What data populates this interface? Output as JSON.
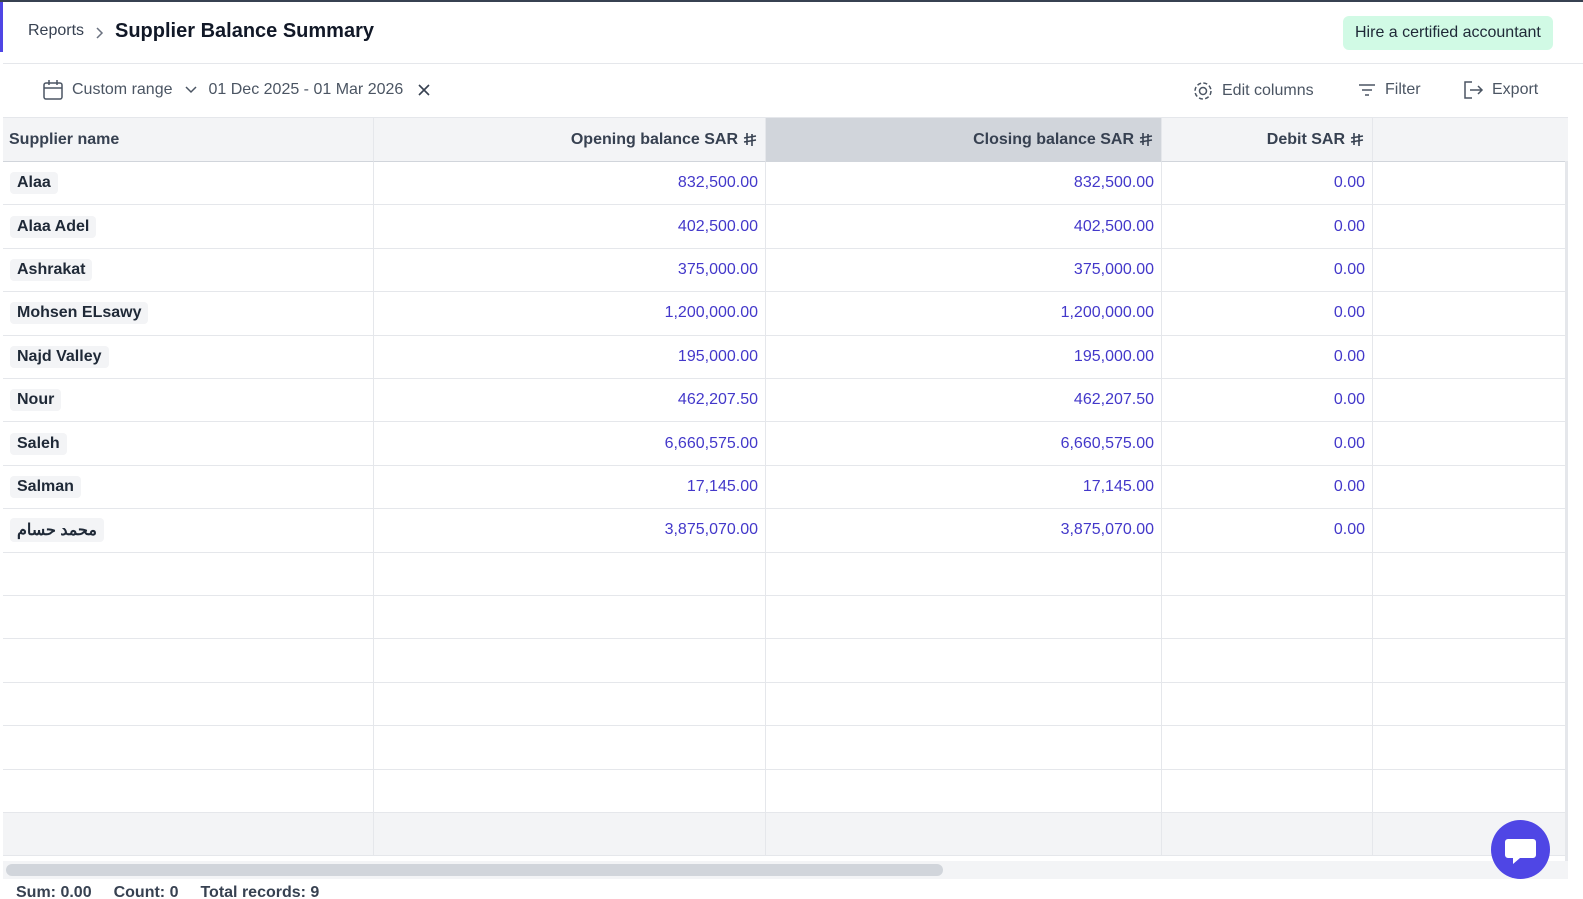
{
  "breadcrumb": {
    "parent": "Reports",
    "title": "Supplier Balance Summary"
  },
  "hire_button": "Hire a certified accountant",
  "toolbar": {
    "range": "Custom range",
    "dates": "01 Dec 2025 - 01 Mar 2026",
    "edit_columns": "Edit columns",
    "filter": "Filter",
    "export": "Export"
  },
  "table": {
    "columns": [
      "Supplier name",
      "Opening balance SAR",
      "Closing balance SAR",
      "Debit SAR"
    ],
    "rows": [
      [
        "Alaa",
        "832,500.00",
        "832,500.00",
        "0.00"
      ],
      [
        "Alaa Adel",
        "402,500.00",
        "402,500.00",
        "0.00"
      ],
      [
        "Ashrakat",
        "375,000.00",
        "375,000.00",
        "0.00"
      ],
      [
        "Mohsen ELsawy",
        "1,200,000.00",
        "1,200,000.00",
        "0.00"
      ],
      [
        "Najd Valley",
        "195,000.00",
        "195,000.00",
        "0.00"
      ],
      [
        "Nour",
        "462,207.50",
        "462,207.50",
        "0.00"
      ],
      [
        "Saleh",
        "6,660,575.00",
        "6,660,575.00",
        "0.00"
      ],
      [
        "Salman",
        "17,145.00",
        "17,145.00",
        "0.00"
      ],
      [
        "محمد حسام",
        "3,875,070.00",
        "3,875,070.00",
        "0.00"
      ]
    ]
  },
  "status": [
    "Sum: 0.00",
    "Count: 0",
    "Total records: 9"
  ]
}
